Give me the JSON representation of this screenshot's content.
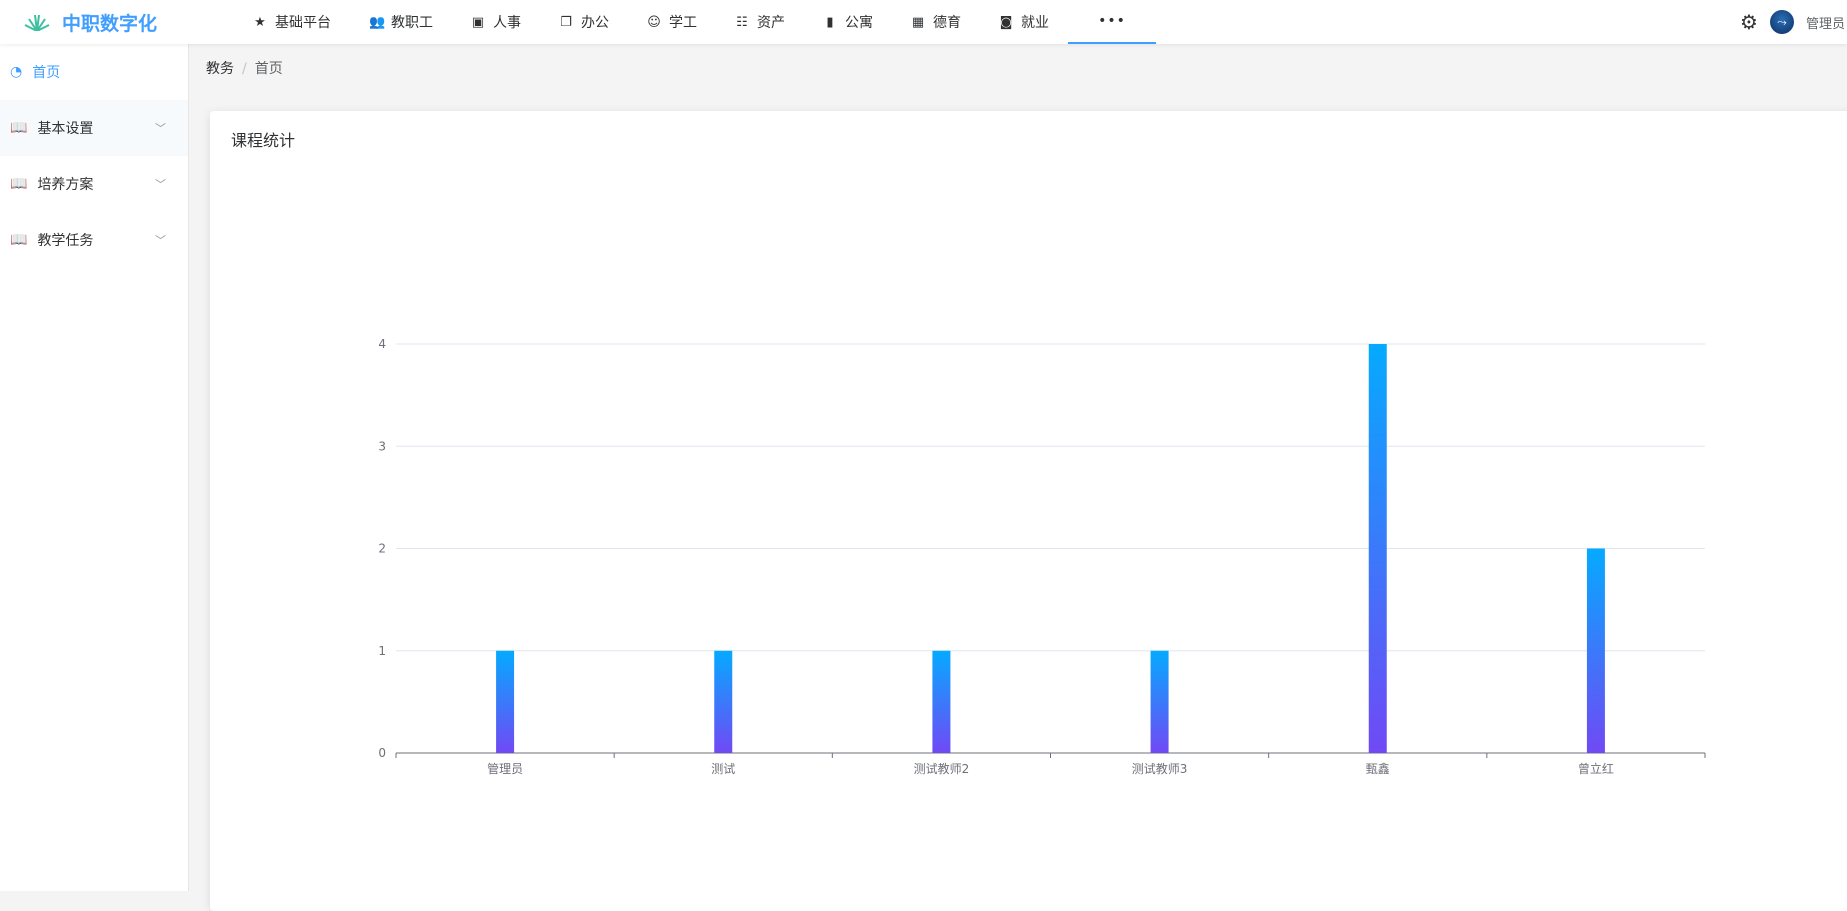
{
  "header": {
    "logo": "中职数字化",
    "nav": [
      {
        "label": "基础平台",
        "icon": "★"
      },
      {
        "label": "教职工",
        "icon": "👥"
      },
      {
        "label": "人事",
        "icon": "▣"
      },
      {
        "label": "办公",
        "icon": "❐"
      },
      {
        "label": "学工",
        "icon": "☺"
      },
      {
        "label": "资产",
        "icon": "☷"
      },
      {
        "label": "公寓",
        "icon": "▮"
      },
      {
        "label": "德育",
        "icon": "▦"
      },
      {
        "label": "就业",
        "icon": "◙"
      }
    ],
    "more": "•••",
    "user": "管理员"
  },
  "sidebar": {
    "items": [
      {
        "label": "首页",
        "active": true
      },
      {
        "label": "基本设置"
      },
      {
        "label": "培养方案"
      },
      {
        "label": "教学任务"
      }
    ]
  },
  "breadcrumb": [
    "教务",
    "首页"
  ],
  "card": {
    "title": "课程统计"
  },
  "chart_data": {
    "type": "bar",
    "categories": [
      "管理员",
      "测试",
      "测试教师2",
      "测试教师3",
      "甄鑫",
      "曾立红"
    ],
    "values": [
      1,
      1,
      1,
      1,
      4,
      2
    ],
    "ylim": [
      0,
      4
    ],
    "yticks": [
      0,
      1,
      2,
      3,
      4
    ],
    "grid": true,
    "colors": {
      "top": "#05aaff",
      "bottom": "#7049f5"
    }
  }
}
